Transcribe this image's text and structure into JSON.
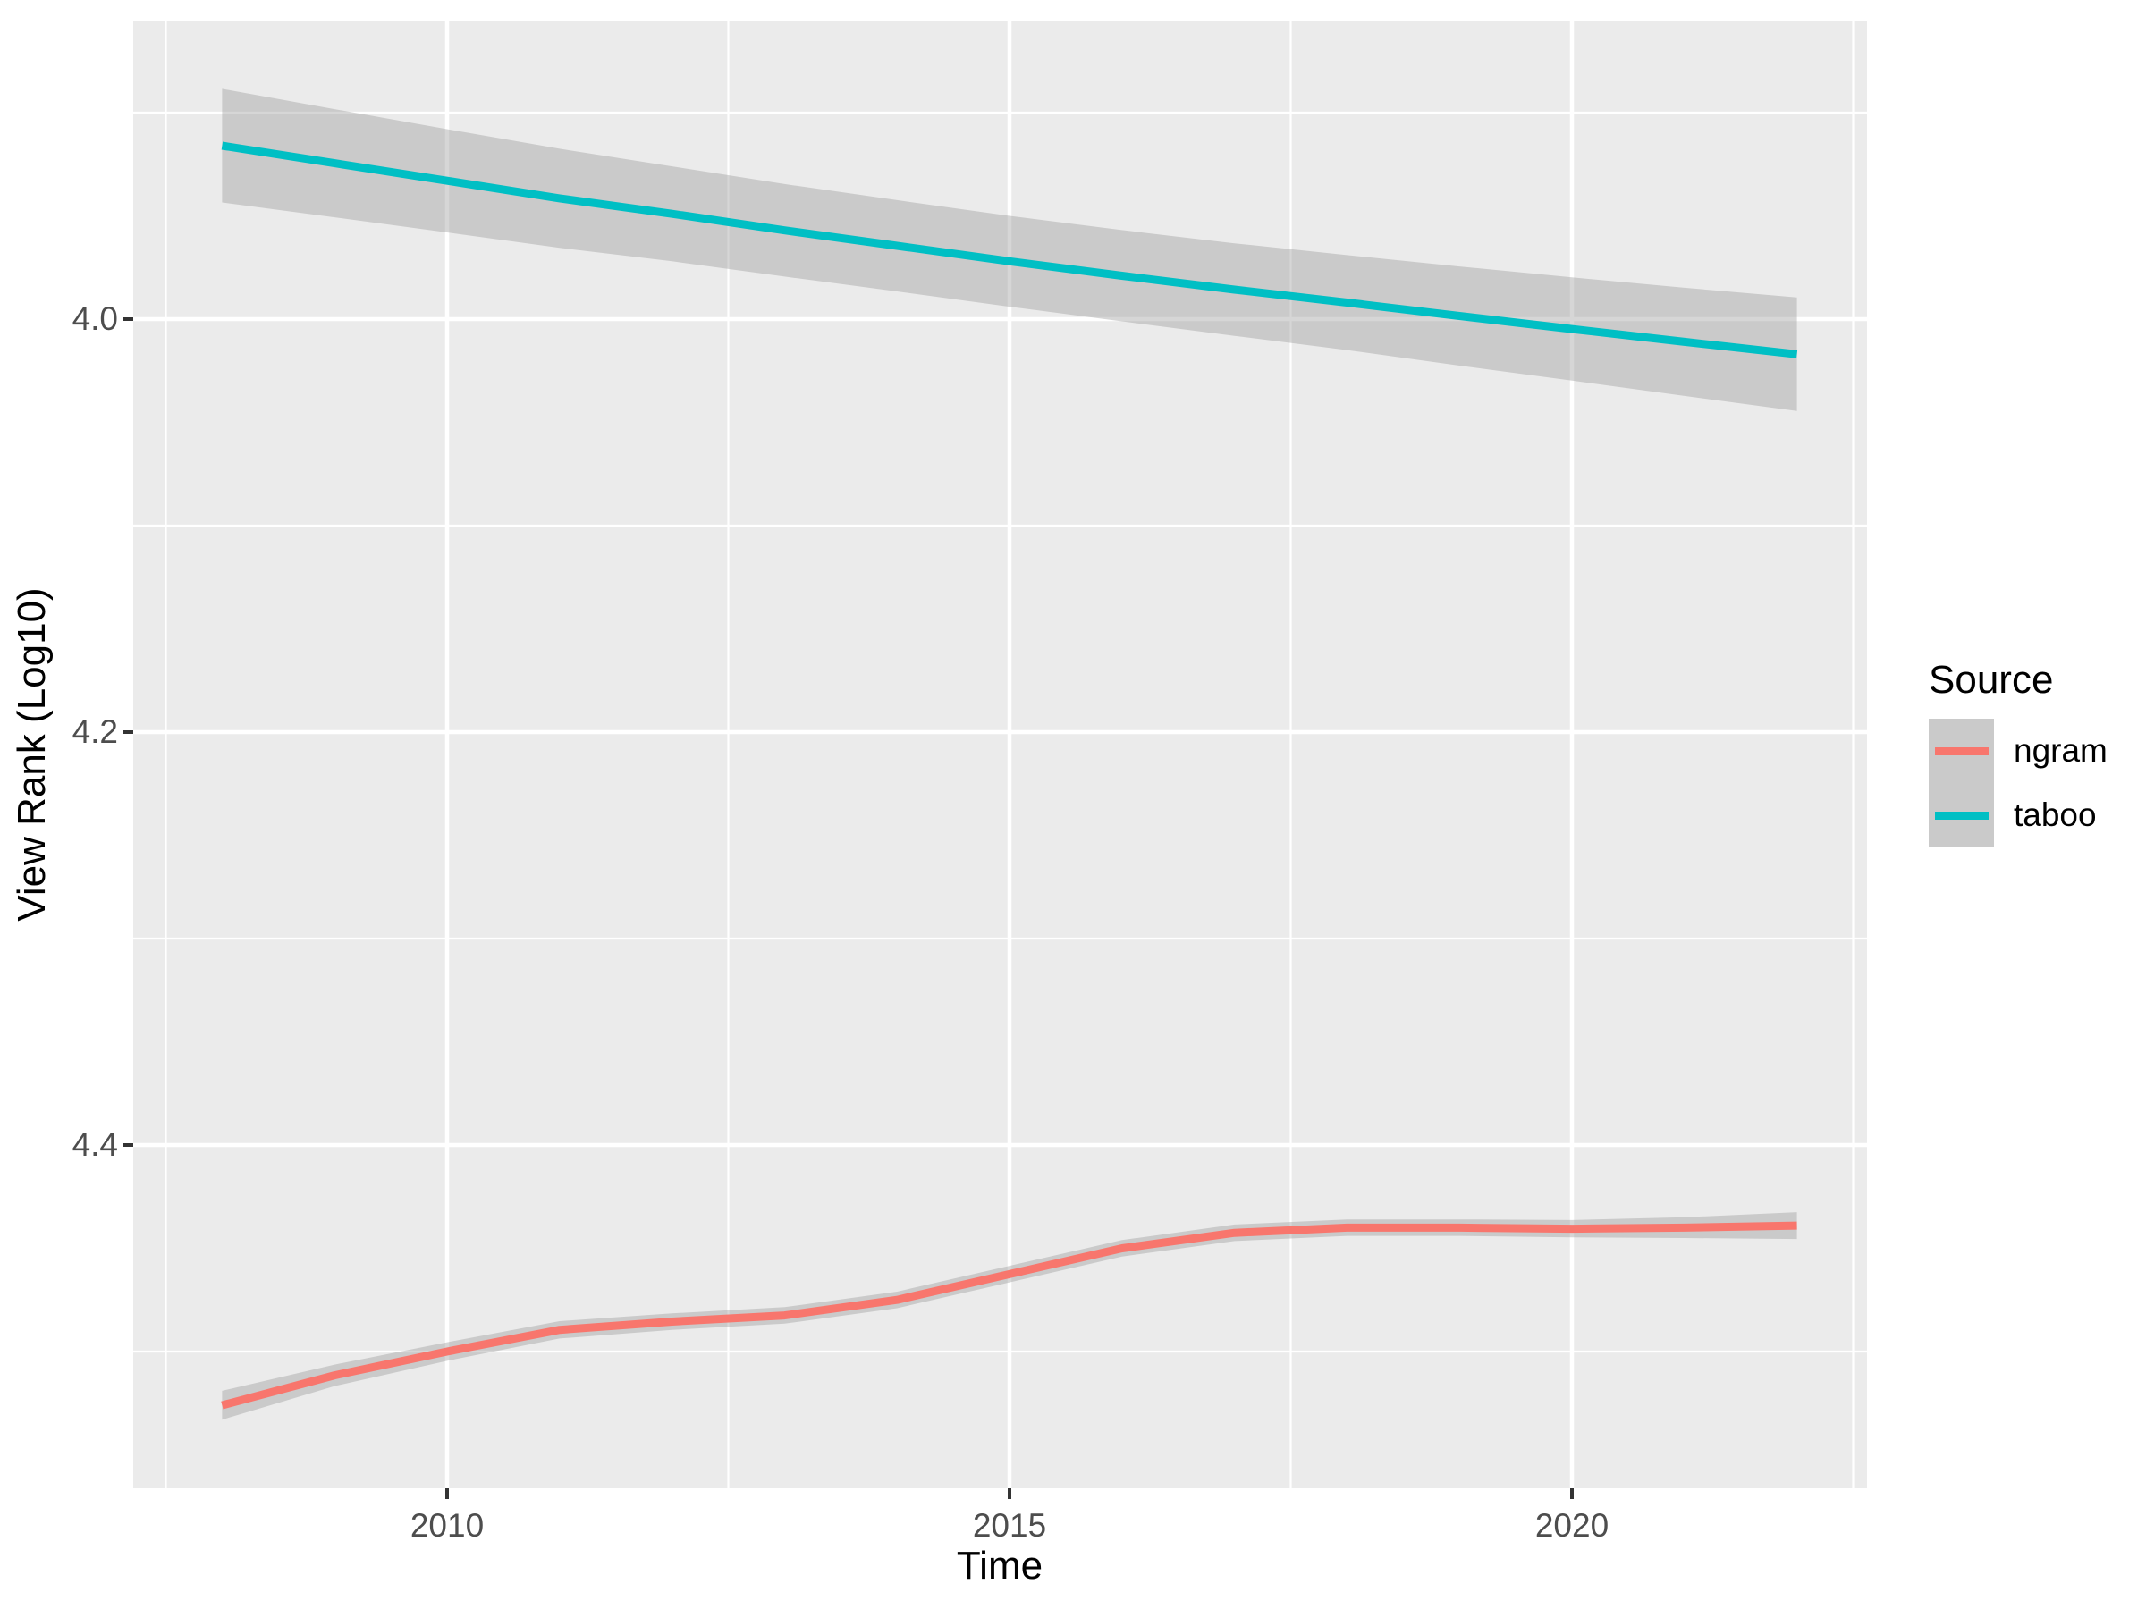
{
  "chart_data": {
    "type": "line",
    "title": "",
    "xlabel": "Time",
    "ylabel": "View Rank (Log10)",
    "grid": true,
    "legend_position": "right",
    "x": [
      2008,
      2009,
      2010,
      2011,
      2012,
      2013,
      2014,
      2015,
      2016,
      2017,
      2018,
      2019,
      2020,
      2021,
      2022
    ],
    "series": [
      {
        "name": "ngram",
        "color": "#F8766D",
        "values": [
          4.526,
          4.5115,
          4.5,
          4.4895,
          4.4855,
          4.4825,
          4.475,
          4.4625,
          4.45,
          4.4425,
          4.44,
          4.44,
          4.4405,
          4.44,
          4.439
        ],
        "ci_low": [
          4.519,
          4.5063,
          4.4955,
          4.4853,
          4.4815,
          4.4785,
          4.471,
          4.4585,
          4.446,
          4.4385,
          4.436,
          4.436,
          4.4363,
          4.435,
          4.4325
        ],
        "ci_high": [
          4.533,
          4.5167,
          4.5045,
          4.4937,
          4.4895,
          4.4865,
          4.479,
          4.4665,
          4.454,
          4.4465,
          4.444,
          4.444,
          4.4447,
          4.445,
          4.4455
        ]
      },
      {
        "name": "taboo",
        "color": "#00BFC4",
        "values": [
          3.916,
          3.9245,
          3.933,
          3.9415,
          3.949,
          3.957,
          3.9645,
          3.972,
          3.979,
          3.9857,
          3.992,
          3.9985,
          4.0048,
          4.011,
          4.017
        ],
        "ci_low": [
          3.8885,
          3.8983,
          3.908,
          3.9175,
          3.926,
          3.9346,
          3.9424,
          3.95,
          3.9569,
          3.9633,
          3.969,
          3.9745,
          3.9798,
          3.9848,
          3.9895
        ],
        "ci_high": [
          3.9435,
          3.9507,
          3.958,
          3.9655,
          3.972,
          3.9794,
          3.9866,
          3.994,
          4.0011,
          4.0081,
          4.015,
          4.0225,
          4.0298,
          4.0372,
          4.0445
        ]
      }
    ],
    "y_axis": {
      "reversed": true,
      "range": [
        3.8554,
        4.5662
      ],
      "ticks_major": [
        4.0,
        4.2,
        4.4
      ],
      "tick_labels": [
        "4.0",
        "4.2",
        "4.4"
      ],
      "ticks_minor": [
        3.9,
        4.1,
        4.3,
        4.5
      ]
    },
    "x_axis": {
      "range": [
        2007.21,
        2022.62
      ],
      "ticks_major": [
        2010,
        2015,
        2020
      ],
      "tick_labels": [
        "2010",
        "2015",
        "2020"
      ],
      "ticks_minor": [
        2007.5,
        2012.5,
        2017.5,
        2022.5
      ]
    },
    "legend": {
      "title": "Source",
      "items": [
        {
          "label": "ngram",
          "color": "#F8766D"
        },
        {
          "label": "taboo",
          "color": "#00BFC4"
        }
      ]
    },
    "colors": {
      "panel_bg": "#EBEBEB",
      "grid": "#FFFFFF",
      "ribbon": "rgba(153,153,153,0.40)",
      "tick_text": "#4D4D4D",
      "tick_mark": "#333333",
      "axis_title": "#000000",
      "legend_key_bg": "#CACACA"
    }
  }
}
